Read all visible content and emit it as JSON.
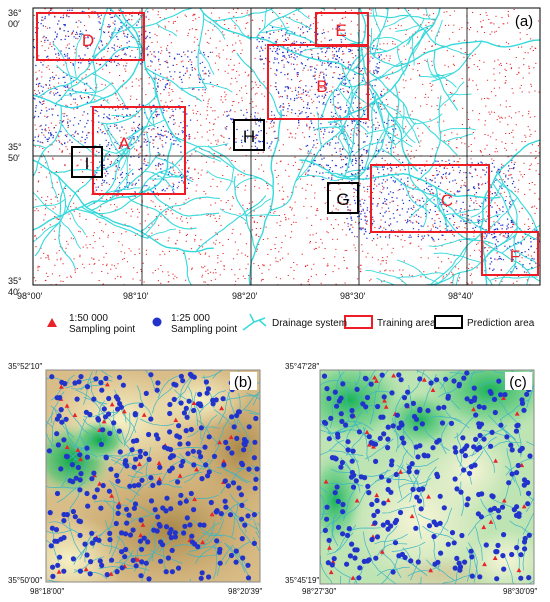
{
  "panel_a": {
    "label": "(a)",
    "lat_labels": [
      {
        "deg": "36°",
        "min": "00′"
      },
      {
        "deg": "35°",
        "min": "50′"
      },
      {
        "deg": "35°",
        "min": "40′"
      }
    ],
    "lon_labels": [
      "98°00′",
      "98°10′",
      "98°20′",
      "98°30′",
      "98°40′"
    ],
    "training_areas": [
      "A",
      "B",
      "C",
      "D",
      "E",
      "F"
    ],
    "prediction_areas": [
      "G",
      "H",
      "I"
    ],
    "colors": {
      "training": "#ee1c24",
      "prediction": "#000000",
      "drainage": "#35d9dc",
      "sample_50k": "#e8242a",
      "sample_25k": "#2233cc"
    }
  },
  "legend": {
    "sample_50k_label_1": "1:50 000",
    "sample_50k_label_2": "Sampling point",
    "sample_25k_label_1": "1:25 000",
    "sample_25k_label_2": "Sampling point",
    "drainage_label": "Drainage system",
    "training_label": "Training area",
    "prediction_label": "Prediction area",
    "icons": [
      "red-triangle-icon",
      "blue-circle-icon",
      "drainage-line-icon",
      "red-rectangle-icon",
      "black-rectangle-icon"
    ]
  },
  "panel_b": {
    "label": "(b)",
    "top_left_lat": "35°52′10″",
    "bottom_left_lat": "35°50′00″",
    "bottom_left_lon": "98°18′00″",
    "bottom_right_lon": "98°20′39″"
  },
  "panel_c": {
    "label": "(c)",
    "top_left_lat": "35°47′28″",
    "bottom_left_lat": "35°45′19″",
    "bottom_left_lon": "98°27′30″",
    "bottom_right_lon": "98°30′09″"
  }
}
